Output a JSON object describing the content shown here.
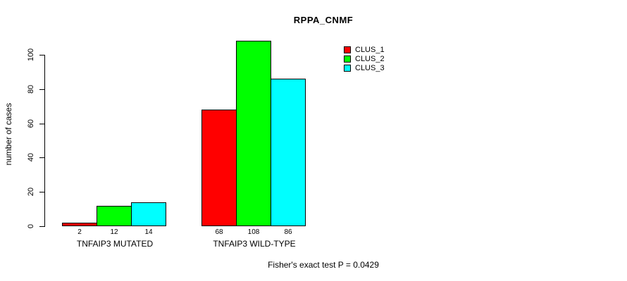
{
  "chart_data": {
    "type": "bar",
    "title": "RPPA_CNMF",
    "ylabel": "number of cases",
    "xlabel": "",
    "groups": [
      "TNFAIP3 MUTATED",
      "TNFAIP3 WILD-TYPE"
    ],
    "series": [
      {
        "name": "CLUS_1",
        "color": "#FF0000",
        "values": [
          2,
          68
        ]
      },
      {
        "name": "CLUS_2",
        "color": "#00FF00",
        "values": [
          12,
          108
        ]
      },
      {
        "name": "CLUS_3",
        "color": "#00FFFF",
        "values": [
          14,
          86
        ]
      }
    ],
    "bar_value_labels": [
      [
        2,
        12,
        14
      ],
      [
        68,
        108,
        86
      ]
    ],
    "yticks": [
      0,
      20,
      40,
      60,
      80,
      100
    ],
    "ylim": [
      0,
      100
    ],
    "grid": false,
    "legend_position": "top-right",
    "annotation": "Fisher's exact test P = 0.0429",
    "bar_border_color": "#000000",
    "axis_color": "#000000",
    "background_color": "#FFFFFF"
  }
}
